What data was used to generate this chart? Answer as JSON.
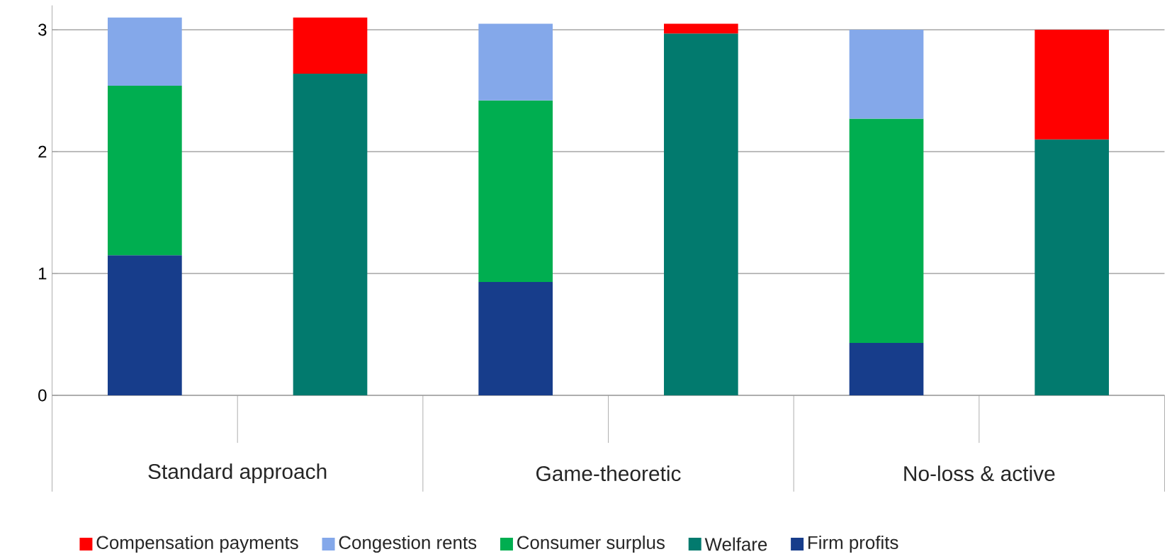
{
  "chart_data": {
    "type": "bar",
    "stacked": true,
    "categories": [
      null,
      null,
      null,
      null,
      null,
      null
    ],
    "series": [
      {
        "name": "Firm profits",
        "color": "#173d8b",
        "values": [
          1.15,
          null,
          0.93,
          null,
          0.43,
          null
        ]
      },
      {
        "name": "Welfare",
        "color": "#027a6e",
        "values": [
          null,
          2.64,
          null,
          2.97,
          null,
          2.1
        ]
      },
      {
        "name": "Consumer surplus",
        "color": "#00ae50",
        "values": [
          1.39,
          null,
          1.49,
          null,
          1.84,
          null
        ]
      },
      {
        "name": "Congestion rents",
        "color": "#84a8ea",
        "values": [
          0.56,
          null,
          0.63,
          null,
          0.73,
          null
        ]
      },
      {
        "name": "Compensation payments",
        "color": "#ff0000",
        "values": [
          null,
          0.46,
          null,
          0.08,
          null,
          0.9
        ]
      }
    ],
    "ylim": [
      0,
      3.2
    ],
    "yticks": [
      0,
      1,
      2,
      3
    ],
    "grid": "y",
    "legend": "bottom",
    "annotations": [
      "Standard approach",
      "Game-theoretic",
      "No-loss & active"
    ]
  }
}
